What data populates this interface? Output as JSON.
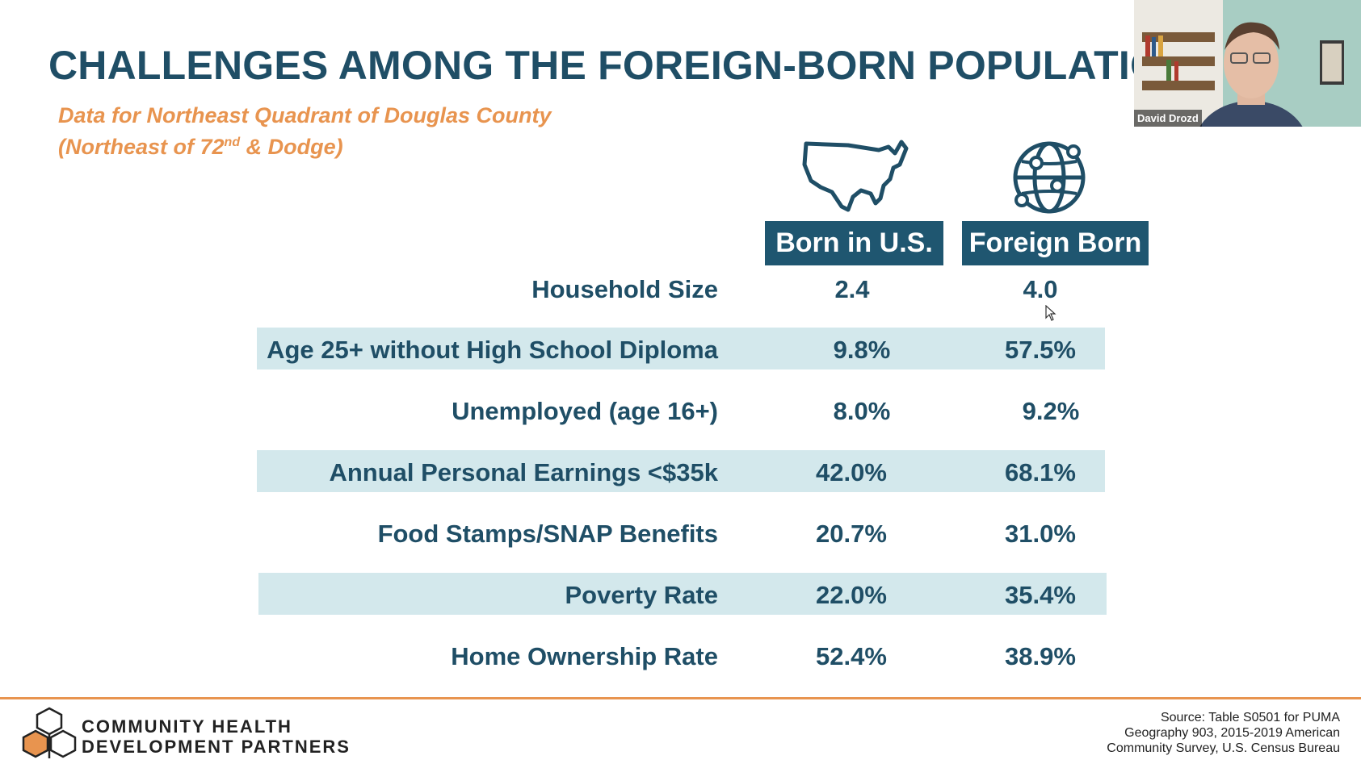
{
  "slide": {
    "title": "CHALLENGES AMONG THE FOREIGN-BORN POPULATION",
    "subtitle_line1": "Data for Northeast Quadrant of Douglas County",
    "subtitle_line2_pre": "(Northeast of 72",
    "subtitle_line2_sup": "nd",
    "subtitle_line2_post": " & Dodge)",
    "columns": [
      "Born in U.S.",
      "Foreign Born"
    ],
    "column_icons": [
      "usa-map-icon",
      "globe-icon"
    ],
    "rows": [
      {
        "label": "Household Size",
        "us": "2.4",
        "foreign": "4.0",
        "shaded": false
      },
      {
        "label": "Age 25+ without High School Diploma",
        "us": "9.8%",
        "foreign": "57.5%",
        "shaded": true
      },
      {
        "label": "Unemployed (age 16+)",
        "us": "8.0%",
        "foreign": "9.2%",
        "shaded": false
      },
      {
        "label": "Annual Personal Earnings <$35k",
        "us": "42.0%",
        "foreign": "68.1%",
        "shaded": true
      },
      {
        "label": "Food Stamps/SNAP Benefits",
        "us": "20.7%",
        "foreign": "31.0%",
        "shaded": false
      },
      {
        "label": "Poverty Rate",
        "us": "22.0%",
        "foreign": "35.4%",
        "shaded": true
      },
      {
        "label": "Home Ownership Rate",
        "us": "52.4%",
        "foreign": "38.9%",
        "shaded": false
      }
    ],
    "logo": {
      "line1": "COMMUNITY HEALTH",
      "line2": "DEVELOPMENT PARTNERS"
    },
    "source": [
      "Source: Table S0501 for PUMA",
      "Geography 903, 2015-2019 American",
      "Community Survey, U.S. Census Bureau"
    ]
  },
  "video": {
    "participant_name": "David Drozd"
  },
  "colors": {
    "title": "#1f4e66",
    "accent": "#e8944f",
    "header_bg": "#1f5670",
    "band": "#d3e8ec"
  }
}
